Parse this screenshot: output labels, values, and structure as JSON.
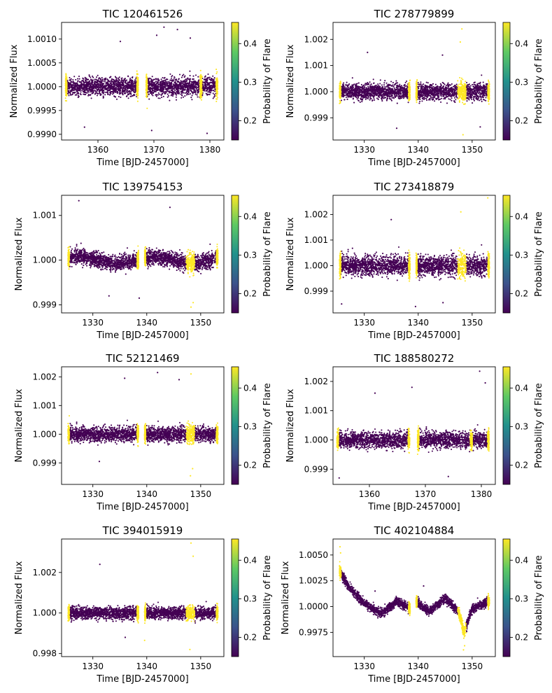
{
  "chart_data": [
    {
      "type": "scatter",
      "title": "TIC 120461526",
      "xlabel": "Time [BJD-2457000]",
      "ylabel": "Normalized Flux",
      "xlim": [
        1353.5,
        1382.5
      ],
      "ylim": [
        0.99888,
        1.00135
      ],
      "xticks": [
        {
          "v": 1360,
          "label": "1360"
        },
        {
          "v": 1370,
          "label": "1370"
        },
        {
          "v": 1380,
          "label": "1380"
        }
      ],
      "yticks": [
        {
          "v": 0.999,
          "label": "0.9990"
        },
        {
          "v": 0.9995,
          "label": "0.9995"
        },
        {
          "v": 1.0,
          "label": "1.0000"
        },
        {
          "v": 1.0005,
          "label": "1.0005"
        },
        {
          "v": 1.001,
          "label": "1.0010"
        }
      ],
      "colorbar": {
        "label": "Probability of Flare",
        "min": 0.15,
        "max": 0.455,
        "ticks": [
          {
            "v": 0.2,
            "label": "0.2"
          },
          {
            "v": 0.3,
            "label": "0.3"
          },
          {
            "v": 0.4,
            "label": "0.4"
          }
        ]
      },
      "segments": [
        [
          1354.2,
          1367.2
        ],
        [
          1368.6,
          1381.4
        ]
      ],
      "center": 1.0,
      "spread": 0.00022,
      "flare_regions": [
        [
          1354.2,
          1354.45
        ],
        [
          1366.95,
          1367.2
        ],
        [
          1368.6,
          1368.8
        ],
        [
          1378.2,
          1378.6
        ],
        [
          1381.1,
          1381.4
        ]
      ],
      "outliers": [
        [
          1371.8,
          1.00125
        ],
        [
          1374.2,
          1.0012
        ],
        [
          1370.5,
          1.00108
        ],
        [
          1364.0,
          1.00095
        ],
        [
          1357.6,
          0.99915
        ],
        [
          1369.6,
          0.99908
        ],
        [
          1376.5,
          1.00102
        ],
        [
          1379.5,
          0.99902
        ]
      ]
    },
    {
      "type": "scatter",
      "title": "TIC 278779899",
      "xlabel": "Time [BJD-2457000]",
      "ylabel": "Normalized Flux",
      "xlim": [
        1324.2,
        1354.3
      ],
      "ylim": [
        0.99815,
        1.00265
      ],
      "xticks": [
        {
          "v": 1330,
          "label": "1330"
        },
        {
          "v": 1340,
          "label": "1340"
        },
        {
          "v": 1350,
          "label": "1350"
        }
      ],
      "yticks": [
        {
          "v": 0.999,
          "label": "0.999"
        },
        {
          "v": 1.0,
          "label": "1.000"
        },
        {
          "v": 1.001,
          "label": "1.001"
        },
        {
          "v": 1.002,
          "label": "1.002"
        }
      ],
      "colorbar": {
        "label": "Probability of Flare",
        "min": 0.15,
        "max": 0.455,
        "ticks": [
          {
            "v": 0.2,
            "label": "0.2"
          },
          {
            "v": 0.3,
            "label": "0.3"
          },
          {
            "v": 0.4,
            "label": "0.4"
          }
        ]
      },
      "segments": [
        [
          1325.4,
          1338.5
        ],
        [
          1339.6,
          1353.2
        ]
      ],
      "center": 1.0,
      "spread": 0.00035,
      "flare_regions": [
        [
          1325.4,
          1325.65
        ],
        [
          1338.2,
          1338.5
        ],
        [
          1339.6,
          1339.8
        ],
        [
          1347.3,
          1348.9
        ],
        [
          1352.9,
          1353.2
        ]
      ],
      "outliers": [
        [
          1348.1,
          1.0024
        ],
        [
          1348.3,
          0.99835
        ],
        [
          1347.8,
          1.0019
        ],
        [
          1330.6,
          1.0015
        ],
        [
          1336.0,
          0.9986
        ],
        [
          1344.5,
          1.0014
        ],
        [
          1351.5,
          0.99865
        ]
      ]
    },
    {
      "type": "scatter",
      "title": "TIC 139754153",
      "xlabel": "Time [BJD-2457000]",
      "ylabel": "Normalized Flux",
      "xlim": [
        1324.2,
        1354.3
      ],
      "ylim": [
        0.99882,
        1.00145
      ],
      "xticks": [
        {
          "v": 1330,
          "label": "1330"
        },
        {
          "v": 1340,
          "label": "1340"
        },
        {
          "v": 1350,
          "label": "1350"
        }
      ],
      "yticks": [
        {
          "v": 0.999,
          "label": "0.999"
        },
        {
          "v": 1.0,
          "label": "1.000"
        },
        {
          "v": 1.001,
          "label": "1.001"
        }
      ],
      "colorbar": {
        "label": "Probability of Flare",
        "min": 0.15,
        "max": 0.455,
        "ticks": [
          {
            "v": 0.2,
            "label": "0.2"
          },
          {
            "v": 0.3,
            "label": "0.3"
          },
          {
            "v": 0.4,
            "label": "0.4"
          }
        ]
      },
      "segments": [
        [
          1325.4,
          1338.5
        ],
        [
          1339.6,
          1353.2
        ]
      ],
      "center": 1.0,
      "spread": 0.0002,
      "wave": 0.00015,
      "flare_regions": [
        [
          1325.4,
          1325.65
        ],
        [
          1338.2,
          1338.5
        ],
        [
          1339.6,
          1339.8
        ],
        [
          1347.3,
          1348.9
        ],
        [
          1352.9,
          1353.2
        ]
      ],
      "outliers": [
        [
          1327.4,
          1.00133
        ],
        [
          1344.3,
          1.00118
        ],
        [
          1348.2,
          0.99895
        ],
        [
          1348.6,
          0.99905
        ],
        [
          1338.6,
          0.99915
        ],
        [
          1333.0,
          0.9992
        ]
      ]
    },
    {
      "type": "scatter",
      "title": "TIC 273418879",
      "xlabel": "Time [BJD-2457000]",
      "ylabel": "Normalized Flux",
      "xlim": [
        1324.2,
        1354.3
      ],
      "ylim": [
        0.99815,
        1.00275
      ],
      "xticks": [
        {
          "v": 1330,
          "label": "1330"
        },
        {
          "v": 1340,
          "label": "1340"
        },
        {
          "v": 1350,
          "label": "1350"
        }
      ],
      "yticks": [
        {
          "v": 0.999,
          "label": "0.999"
        },
        {
          "v": 1.0,
          "label": "1.000"
        },
        {
          "v": 1.001,
          "label": "1.001"
        },
        {
          "v": 1.002,
          "label": "1.002"
        }
      ],
      "colorbar": {
        "label": "Probability of Flare",
        "min": 0.15,
        "max": 0.455,
        "ticks": [
          {
            "v": 0.2,
            "label": "0.2"
          },
          {
            "v": 0.3,
            "label": "0.3"
          },
          {
            "v": 0.4,
            "label": "0.4"
          }
        ]
      },
      "segments": [
        [
          1325.4,
          1338.5
        ],
        [
          1339.6,
          1353.2
        ]
      ],
      "center": 1.0,
      "spread": 0.00045,
      "flare_regions": [
        [
          1325.4,
          1325.65
        ],
        [
          1338.2,
          1338.5
        ],
        [
          1339.6,
          1339.8
        ],
        [
          1347.3,
          1348.9
        ],
        [
          1352.9,
          1353.2
        ]
      ],
      "outliers": [
        [
          1352.9,
          1.00265
        ],
        [
          1347.9,
          1.0021
        ],
        [
          1325.8,
          0.9985
        ],
        [
          1339.5,
          0.9984
        ],
        [
          1335.0,
          1.0018
        ],
        [
          1344.6,
          0.99855
        ]
      ]
    },
    {
      "type": "scatter",
      "title": "TIC 52121469",
      "xlabel": "Time [BJD-2457000]",
      "ylabel": "Normalized Flux",
      "xlim": [
        1324.2,
        1354.3
      ],
      "ylim": [
        0.99825,
        1.00235
      ],
      "xticks": [
        {
          "v": 1330,
          "label": "1330"
        },
        {
          "v": 1340,
          "label": "1340"
        },
        {
          "v": 1350,
          "label": "1350"
        }
      ],
      "yticks": [
        {
          "v": 0.999,
          "label": "0.999"
        },
        {
          "v": 1.0,
          "label": "1.000"
        },
        {
          "v": 1.001,
          "label": "1.001"
        },
        {
          "v": 1.002,
          "label": "1.002"
        }
      ],
      "colorbar": {
        "label": "Probability of Flare",
        "min": 0.15,
        "max": 0.455,
        "ticks": [
          {
            "v": 0.2,
            "label": "0.2"
          },
          {
            "v": 0.3,
            "label": "0.3"
          },
          {
            "v": 0.4,
            "label": "0.4"
          }
        ]
      },
      "segments": [
        [
          1325.4,
          1338.5
        ],
        [
          1339.6,
          1353.2
        ]
      ],
      "center": 1.0,
      "spread": 0.0003,
      "flare_regions": [
        [
          1325.4,
          1325.65
        ],
        [
          1338.2,
          1338.5
        ],
        [
          1339.6,
          1339.8
        ],
        [
          1347.3,
          1348.9
        ],
        [
          1352.9,
          1353.2
        ]
      ],
      "outliers": [
        [
          1342.0,
          1.00215
        ],
        [
          1346.0,
          1.0019
        ],
        [
          1335.9,
          1.00195
        ],
        [
          1348.2,
          1.0021
        ],
        [
          1348.1,
          0.99855
        ],
        [
          1348.5,
          0.9988
        ],
        [
          1331.2,
          0.99905
        ]
      ]
    },
    {
      "type": "scatter",
      "title": "TIC 188580272",
      "xlabel": "Time [BJD-2457000]",
      "ylabel": "Normalized Flux",
      "xlim": [
        1353.5,
        1382.5
      ],
      "ylim": [
        0.99848,
        1.0025
      ],
      "xticks": [
        {
          "v": 1360,
          "label": "1360"
        },
        {
          "v": 1370,
          "label": "1370"
        },
        {
          "v": 1380,
          "label": "1380"
        }
      ],
      "yticks": [
        {
          "v": 0.999,
          "label": "0.999"
        },
        {
          "v": 1.0,
          "label": "1.000"
        },
        {
          "v": 1.001,
          "label": "1.001"
        },
        {
          "v": 1.002,
          "label": "1.002"
        }
      ],
      "colorbar": {
        "label": "Probability of Flare",
        "min": 0.15,
        "max": 0.455,
        "ticks": [
          {
            "v": 0.2,
            "label": "0.2"
          },
          {
            "v": 0.3,
            "label": "0.3"
          },
          {
            "v": 0.4,
            "label": "0.4"
          }
        ]
      },
      "segments": [
        [
          1354.2,
          1367.2
        ],
        [
          1368.6,
          1381.4
        ]
      ],
      "center": 1.0,
      "spread": 0.00032,
      "flare_regions": [
        [
          1354.2,
          1354.5
        ],
        [
          1366.9,
          1367.2
        ],
        [
          1368.6,
          1368.85
        ],
        [
          1378.0,
          1378.4
        ],
        [
          1381.1,
          1381.4
        ]
      ],
      "outliers": [
        [
          1379.7,
          1.00235
        ],
        [
          1380.7,
          1.00195
        ],
        [
          1367.6,
          1.0018
        ],
        [
          1354.6,
          0.9987
        ],
        [
          1374.1,
          0.99875
        ],
        [
          1361.0,
          1.0016
        ]
      ]
    },
    {
      "type": "scatter",
      "title": "TIC 394015919",
      "xlabel": "Time [BJD-2457000]",
      "ylabel": "Normalized Flux",
      "xlim": [
        1324.2,
        1354.3
      ],
      "ylim": [
        0.99785,
        1.00365
      ],
      "xticks": [
        {
          "v": 1330,
          "label": "1330"
        },
        {
          "v": 1340,
          "label": "1340"
        },
        {
          "v": 1350,
          "label": "1350"
        }
      ],
      "yticks": [
        {
          "v": 0.998,
          "label": "0.998"
        },
        {
          "v": 1.0,
          "label": "1.000"
        },
        {
          "v": 1.002,
          "label": "1.002"
        }
      ],
      "colorbar": {
        "label": "Probability of Flare",
        "min": 0.15,
        "max": 0.455,
        "ticks": [
          {
            "v": 0.2,
            "label": "0.2"
          },
          {
            "v": 0.3,
            "label": "0.3"
          },
          {
            "v": 0.4,
            "label": "0.4"
          }
        ]
      },
      "segments": [
        [
          1325.4,
          1338.5
        ],
        [
          1339.6,
          1353.2
        ]
      ],
      "center": 1.0,
      "spread": 0.00035,
      "flare_regions": [
        [
          1325.4,
          1325.65
        ],
        [
          1338.2,
          1338.5
        ],
        [
          1339.6,
          1339.8
        ],
        [
          1347.3,
          1348.9
        ],
        [
          1352.9,
          1353.2
        ]
      ],
      "outliers": [
        [
          1348.2,
          1.00345
        ],
        [
          1331.3,
          1.0024
        ],
        [
          1348.0,
          0.9982
        ],
        [
          1339.6,
          0.99865
        ],
        [
          1348.6,
          1.0028
        ],
        [
          1336.0,
          0.9988
        ]
      ]
    },
    {
      "type": "scatter",
      "title": "TIC 402104884",
      "xlabel": "Time [BJD-2457000]",
      "ylabel": "Normalized Flux",
      "xlim": [
        1324.2,
        1354.3
      ],
      "ylim": [
        0.99515,
        1.00655
      ],
      "xticks": [
        {
          "v": 1330,
          "label": "1330"
        },
        {
          "v": 1340,
          "label": "1340"
        },
        {
          "v": 1350,
          "label": "1350"
        }
      ],
      "yticks": [
        {
          "v": 0.9975,
          "label": "0.9975"
        },
        {
          "v": 1.0,
          "label": "1.0000"
        },
        {
          "v": 1.0025,
          "label": "1.0025"
        },
        {
          "v": 1.005,
          "label": "1.0050"
        }
      ],
      "colorbar": {
        "label": "Probability of Flare",
        "min": 0.15,
        "max": 0.455,
        "ticks": [
          {
            "v": 0.2,
            "label": "0.2"
          },
          {
            "v": 0.3,
            "label": "0.3"
          },
          {
            "v": 0.4,
            "label": "0.4"
          }
        ]
      },
      "segments": [
        [
          1325.4,
          1338.5
        ],
        [
          1339.6,
          1353.2
        ]
      ],
      "center": 1.0,
      "spread": 0.0005,
      "trend": [
        [
          1325.4,
          1.0035
        ],
        [
          1327.0,
          1.002
        ],
        [
          1330.0,
          1.0003
        ],
        [
          1333.0,
          0.9993
        ],
        [
          1336.0,
          1.0005
        ],
        [
          1338.5,
          0.9998
        ],
        [
          1339.6,
          1.0005
        ],
        [
          1342.0,
          0.9995
        ],
        [
          1345.0,
          1.0008
        ],
        [
          1347.5,
          0.9995
        ],
        [
          1348.5,
          0.9975
        ],
        [
          1350.0,
          0.9998
        ],
        [
          1353.2,
          1.0005
        ]
      ],
      "flare_regions": [
        [
          1325.4,
          1325.7
        ],
        [
          1338.2,
          1338.5
        ],
        [
          1339.6,
          1339.8
        ],
        [
          1347.3,
          1348.9
        ],
        [
          1352.9,
          1353.2
        ]
      ],
      "outliers": [
        [
          1325.5,
          1.0058
        ],
        [
          1325.6,
          1.0052
        ],
        [
          1348.4,
          0.9958
        ],
        [
          1348.6,
          0.9962
        ],
        [
          1332.0,
          1.0015
        ],
        [
          1341.0,
          1.002
        ]
      ]
    }
  ]
}
